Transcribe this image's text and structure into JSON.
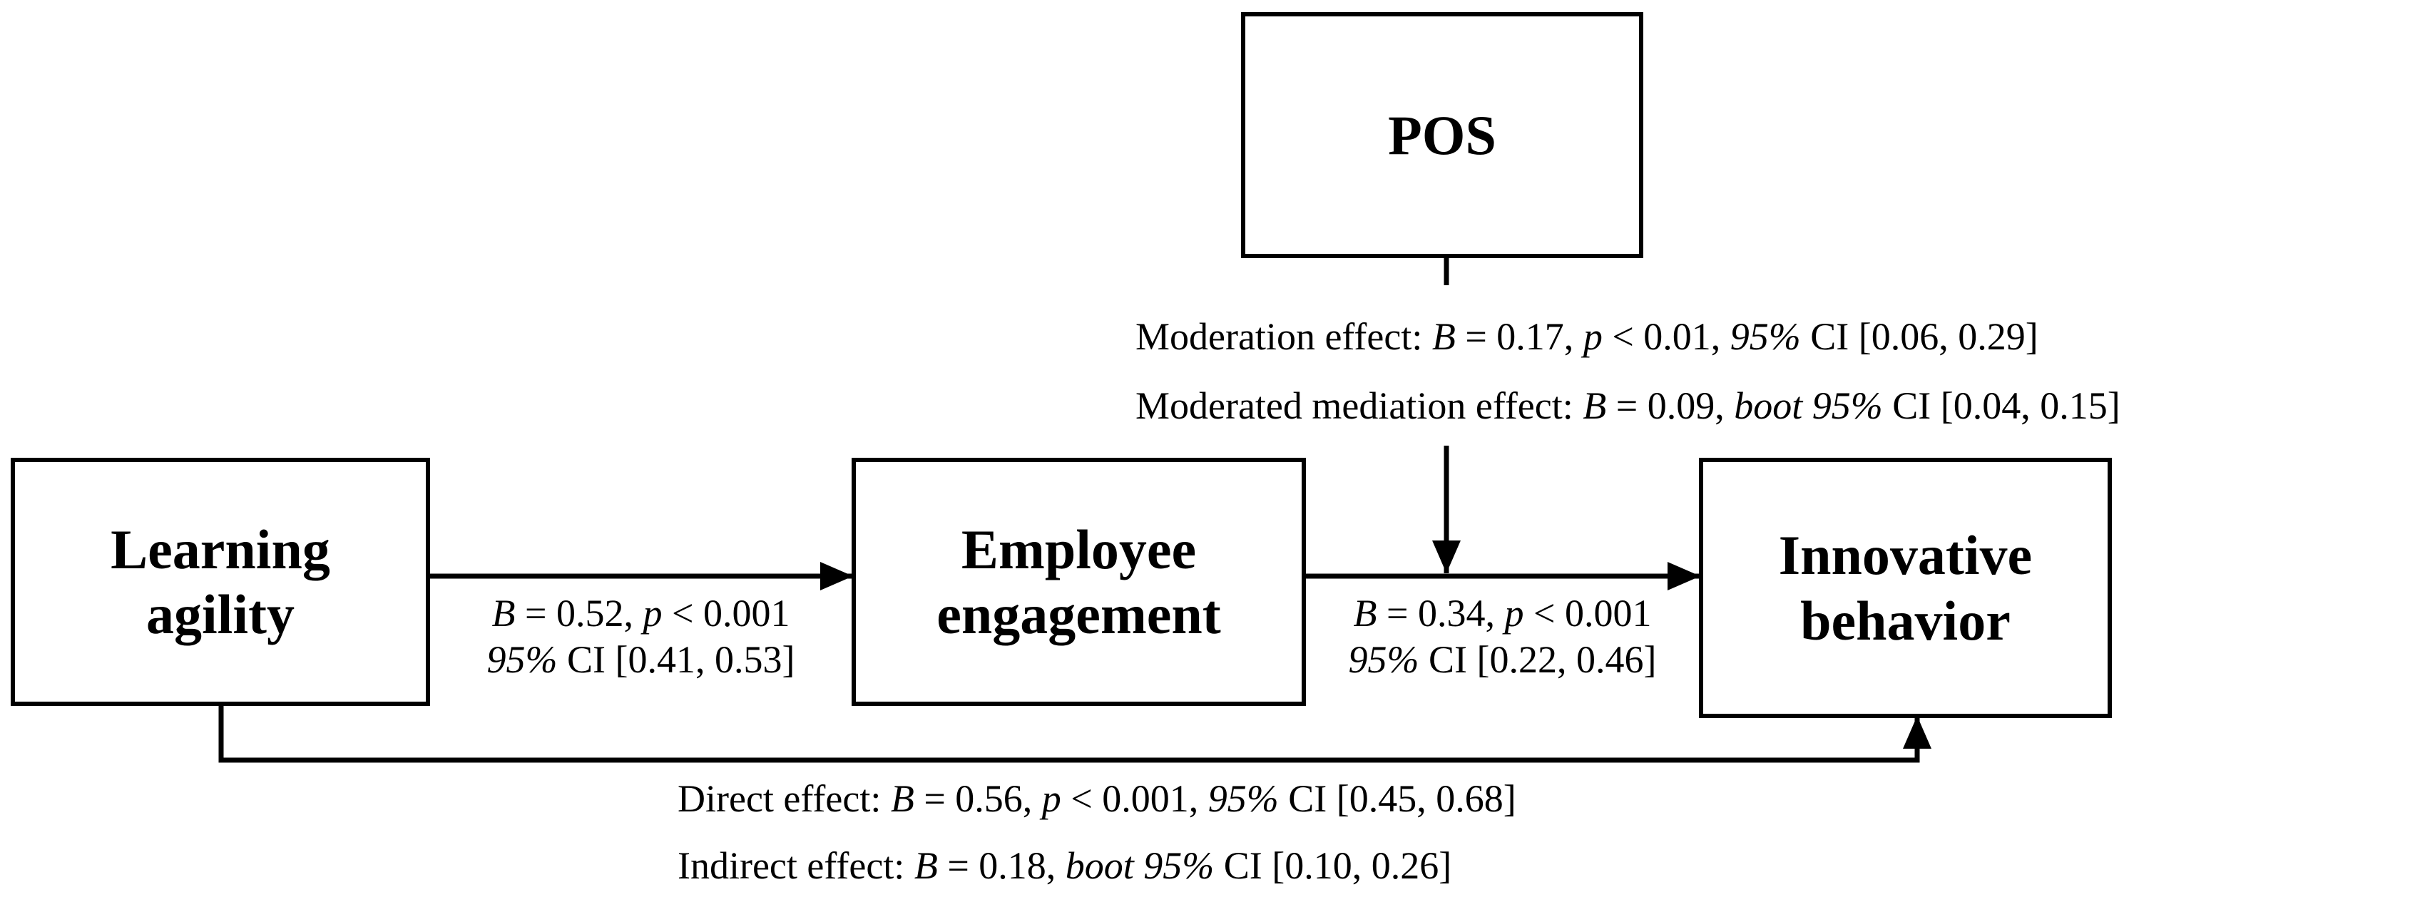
{
  "nodes": {
    "pos": {
      "label": "POS"
    },
    "learning_agility": {
      "label_line1": "Learning",
      "label_line2": "agility"
    },
    "employee_engagement": {
      "label_line1": "Employee",
      "label_line2": "engagement"
    },
    "innovative_behavior": {
      "label_line1": "Innovative",
      "label_line2": "behavior"
    }
  },
  "paths": {
    "a_path": {
      "line1": {
        "b_sym": "B",
        "b_val": " = 0.52, ",
        "p_sym": "p",
        "p_val": " < 0.001"
      },
      "line2": {
        "ci_pct": "95%",
        "ci_val": " CI [0.41, 0.53]"
      }
    },
    "b_path": {
      "line1": {
        "b_sym": "B",
        "b_val": " = 0.34, ",
        "p_sym": "p",
        "p_val": " < 0.001"
      },
      "line2": {
        "ci_pct": "95%",
        "ci_val": " CI [0.22, 0.46]"
      }
    },
    "moderation": {
      "prefix": "Moderation effect: ",
      "b_sym": "B",
      "b_val": " = 0.17, ",
      "p_sym": "p",
      "p_val": " < 0.01, ",
      "ci_pct": "95%",
      "ci_val": " CI [0.06, 0.29]"
    },
    "moderated_mediation": {
      "prefix": "Moderated mediation effect: ",
      "b_sym": "B",
      "b_val": " = 0.09, ",
      "ci_pct": "boot 95%",
      "ci_val": " CI [0.04, 0.15]"
    },
    "direct": {
      "prefix": "Direct effect: ",
      "b_sym": "B",
      "b_val": " = 0.56, ",
      "p_sym": "p",
      "p_val": " < 0.001, ",
      "ci_pct": "95%",
      "ci_val": " CI [0.45, 0.68]"
    },
    "indirect": {
      "prefix": "Indirect effect: ",
      "b_sym": "B",
      "b_val": " = 0.18, ",
      "ci_pct": "boot 95%",
      "ci_val": " CI [0.10, 0.26]"
    }
  },
  "colors": {
    "stroke": "#000000",
    "background": "#ffffff"
  }
}
